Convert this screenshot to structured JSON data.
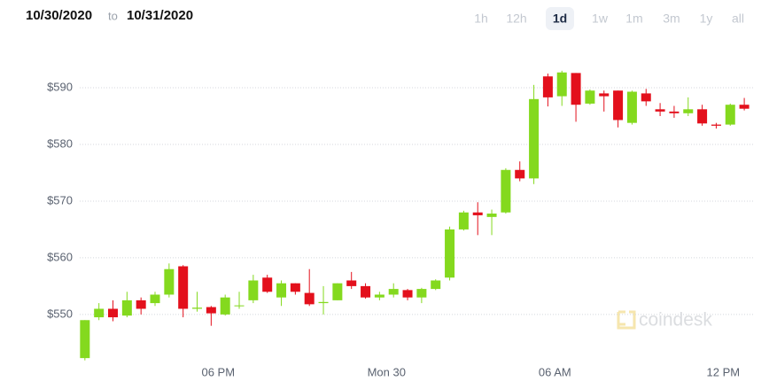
{
  "header": {
    "from": "10/30/2020",
    "joiner": "to",
    "to": "10/31/2020",
    "ranges": [
      "1h",
      "12h",
      "1d",
      "1w",
      "1m",
      "3m",
      "1y",
      "all"
    ],
    "selected_range": "1d"
  },
  "chart_data": {
    "type": "candlestick",
    "watermark": "coindesk",
    "categories": [
      null,
      null,
      null,
      null,
      null,
      null,
      null,
      null,
      null,
      null,
      null,
      null,
      null,
      null,
      null,
      null,
      null,
      null,
      null,
      null,
      null,
      null,
      null,
      null,
      null,
      null,
      null,
      null,
      null,
      null,
      null,
      null,
      null,
      null,
      null,
      null,
      null,
      null,
      null,
      null,
      null,
      null,
      null,
      null,
      null,
      null,
      null,
      null
    ],
    "open": [
      542.3,
      549.5,
      551,
      549.8,
      552.5,
      552,
      553.5,
      558.5,
      551,
      551.3,
      550,
      551.5,
      552.5,
      556.5,
      553,
      555.5,
      553.8,
      552,
      552.5,
      556,
      555,
      553,
      553.5,
      554.3,
      553,
      554.5,
      556.5,
      565,
      568,
      567.2,
      568,
      575.5,
      574,
      592,
      588.5,
      592.6,
      587.2,
      589,
      589.5,
      583.8,
      589,
      586.2,
      585.8,
      585.5,
      586.2,
      583.5,
      583.5,
      587
    ],
    "high": [
      549,
      552,
      552.5,
      554,
      553,
      554,
      559,
      558.7,
      554,
      551.5,
      553.5,
      554,
      557,
      557,
      556,
      555.5,
      558,
      555,
      555.5,
      557.5,
      555.5,
      554,
      555.5,
      554.5,
      554.7,
      556.2,
      565.5,
      568.3,
      569.8,
      568.5,
      575.8,
      577,
      590.5,
      592.5,
      593,
      592.6,
      589.7,
      589.5,
      589.5,
      589.5,
      589.8,
      587.3,
      586.8,
      588.3,
      587,
      583.8,
      587.2,
      588.2
    ],
    "low": [
      541.9,
      549,
      548.8,
      549.5,
      550,
      551.5,
      553,
      549.5,
      550.5,
      548,
      549.8,
      551,
      552,
      553.8,
      551.5,
      553.5,
      551.5,
      550,
      552.5,
      554.5,
      552.8,
      552.5,
      553,
      552.5,
      552,
      554.3,
      556,
      564.8,
      564,
      564,
      567.8,
      573.5,
      573,
      586.7,
      586.8,
      584,
      587,
      585.8,
      583,
      583.5,
      586.8,
      585,
      584.7,
      585,
      583.3,
      582.8,
      583.3,
      586
    ],
    "close": [
      549,
      551,
      549.5,
      552.5,
      551,
      553.5,
      558,
      551,
      551.2,
      550.2,
      553,
      551.6,
      556,
      554,
      555.5,
      554,
      551.8,
      552.2,
      555.5,
      555,
      553,
      553.5,
      554.5,
      553,
      554.5,
      556,
      565,
      568,
      567.5,
      567.8,
      575.5,
      574,
      588,
      588.3,
      592.7,
      587,
      589.5,
      588.5,
      584.3,
      589.3,
      587.6,
      585.8,
      585.5,
      586.2,
      583.7,
      583.3,
      587,
      586.3
    ],
    "up_color": "#84d91e",
    "down_color": "#e3101c",
    "xlim": [
      -1,
      47.6
    ],
    "xticks": [
      {
        "value": 9.5,
        "label": "06 PM"
      },
      {
        "value": 21.5,
        "label": "Mon 30"
      },
      {
        "value": 33.5,
        "label": "06 AM"
      },
      {
        "value": 45.5,
        "label": "12 PM"
      }
    ],
    "ylim": [
      540.6,
      596.1
    ],
    "yticks": [
      {
        "value": 550,
        "label": "$550"
      },
      {
        "value": 560,
        "label": "$560"
      },
      {
        "value": 570,
        "label": "$570"
      },
      {
        "value": 580,
        "label": "$580"
      },
      {
        "value": 590,
        "label": "$590"
      }
    ],
    "grid": true
  }
}
